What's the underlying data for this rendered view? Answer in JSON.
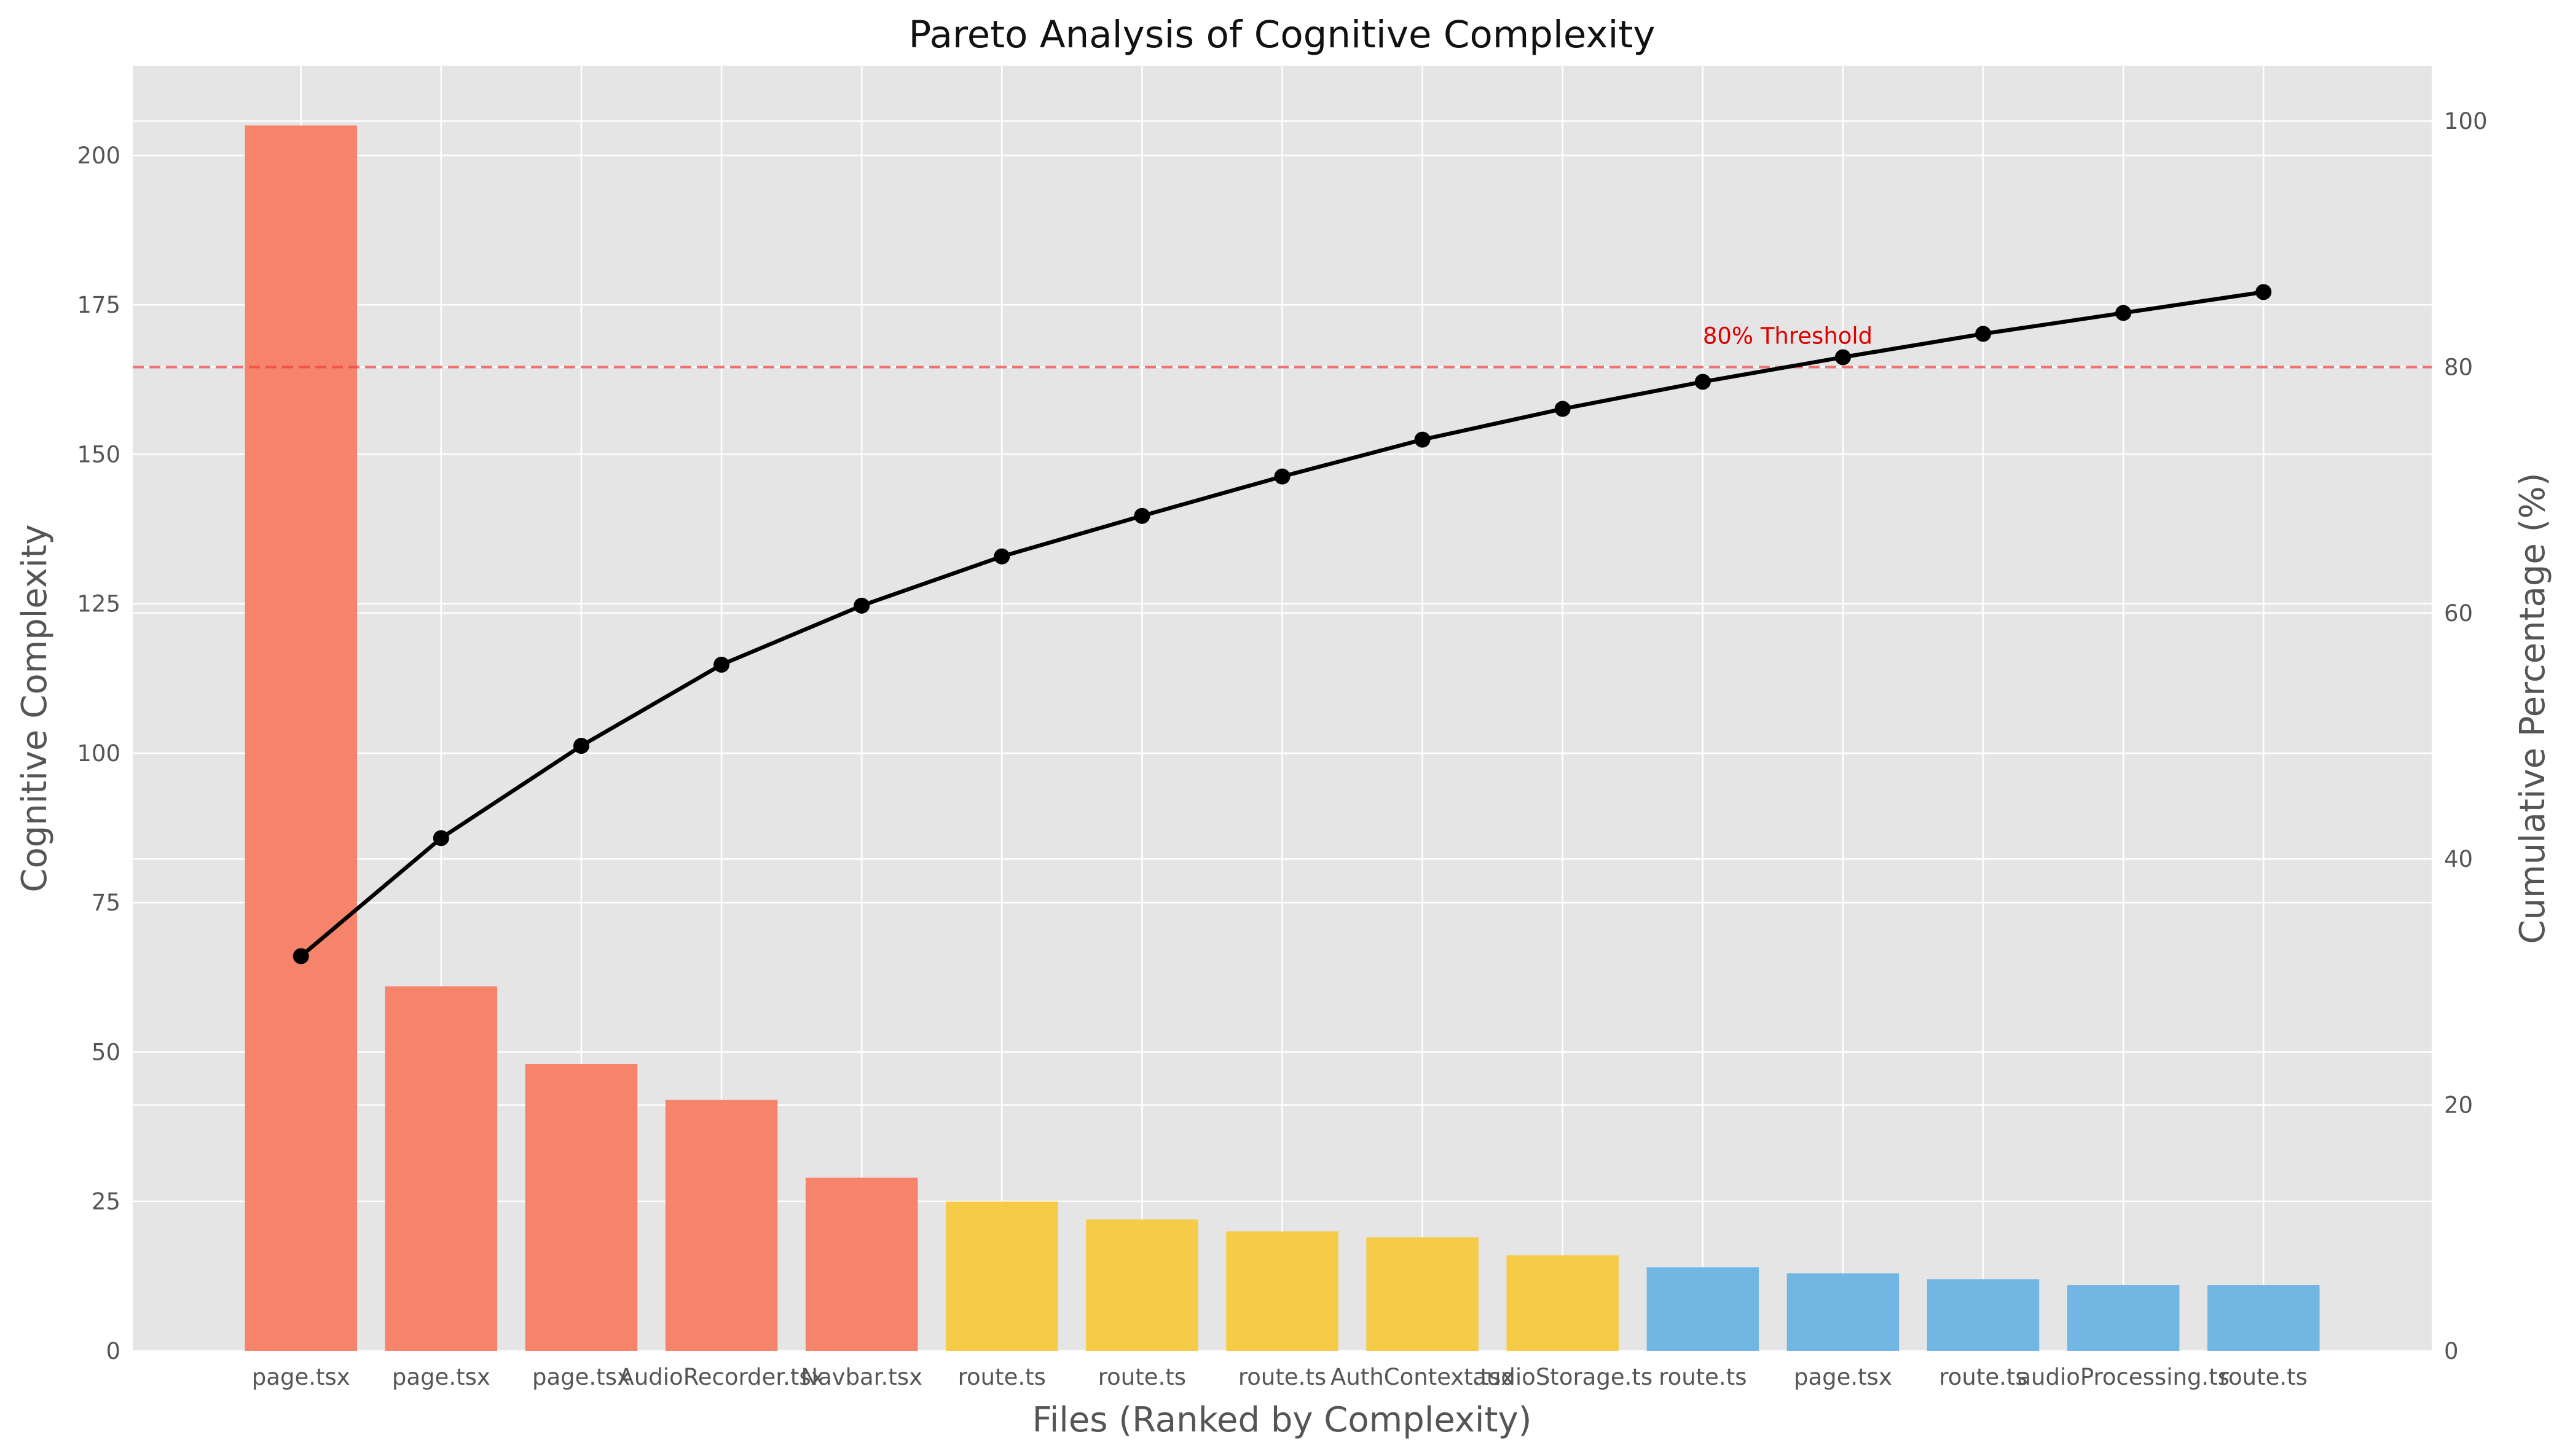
{
  "chart_data": {
    "type": "bar",
    "title": "Pareto Analysis of Cognitive Complexity",
    "xlabel": "Files (Ranked by Complexity)",
    "ylabel": "Cognitive Complexity",
    "y2label": "Cumulative Percentage (%)",
    "categories": [
      "page.tsx",
      "page.tsx",
      "page.tsx",
      "AudioRecorder.tsx",
      "Navbar.tsx",
      "route.ts",
      "route.ts",
      "route.ts",
      "AuthContext.tsx",
      "audioStorage.ts",
      "route.ts",
      "page.tsx",
      "route.ts",
      "audioProcessing.ts",
      "route.ts"
    ],
    "values": [
      205,
      61,
      48,
      42,
      29,
      25,
      22,
      20,
      19,
      16,
      14,
      13,
      12,
      11,
      11
    ],
    "bar_groups": [
      "a",
      "a",
      "a",
      "a",
      "a",
      "b",
      "b",
      "b",
      "b",
      "b",
      "c",
      "c",
      "c",
      "c",
      "c"
    ],
    "group_colors": {
      "a": "#f67e64",
      "b": "#f5c93e",
      "c": "#6cb4e4"
    },
    "cumulative_percent": [
      32.1,
      41.7,
      49.2,
      55.8,
      60.6,
      64.6,
      67.9,
      71.1,
      74.1,
      76.6,
      78.8,
      80.8,
      82.7,
      84.4,
      86.1
    ],
    "threshold": {
      "value": 80,
      "label": "80% Threshold",
      "color": "#ee4444"
    },
    "ylim": [
      0,
      215
    ],
    "y2lim": [
      0,
      104.5
    ],
    "yticks": [
      0,
      25,
      50,
      75,
      100,
      125,
      150,
      175,
      200
    ],
    "y2ticks": [
      0,
      20,
      40,
      60,
      80,
      100
    ],
    "grid": true,
    "background": "#e5e5e5"
  }
}
